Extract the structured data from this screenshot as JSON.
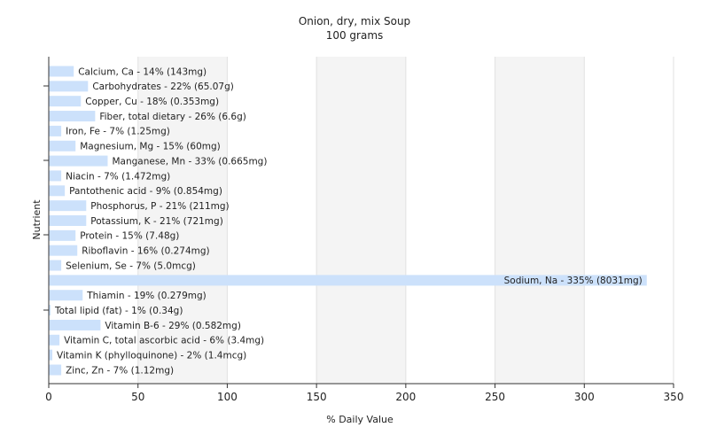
{
  "chart_data": {
    "type": "bar",
    "orientation": "horizontal",
    "title": "Onion, dry, mix Soup",
    "subtitle": "100 grams",
    "xlabel": "% Daily Value",
    "ylabel": "Nutrient",
    "xlim": [
      0,
      350
    ],
    "xticks": [
      0,
      50,
      100,
      150,
      200,
      250,
      300,
      350
    ],
    "grid": true,
    "bar_color": "#cce1fb",
    "categories": [
      "Calcium, Ca - 14% (143mg)",
      "Carbohydrates - 22% (65.07g)",
      "Copper, Cu - 18% (0.353mg)",
      "Fiber, total dietary - 26% (6.6g)",
      "Iron, Fe - 7% (1.25mg)",
      "Magnesium, Mg - 15% (60mg)",
      "Manganese, Mn - 33% (0.665mg)",
      "Niacin - 7% (1.472mg)",
      "Pantothenic acid - 9% (0.854mg)",
      "Phosphorus, P - 21% (211mg)",
      "Potassium, K - 21% (721mg)",
      "Protein - 15% (7.48g)",
      "Riboflavin - 16% (0.274mg)",
      "Selenium, Se - 7% (5.0mcg)",
      "Sodium, Na - 335% (8031mg)",
      "Thiamin - 19% (0.279mg)",
      "Total lipid (fat) - 1% (0.34g)",
      "Vitamin B-6 - 29% (0.582mg)",
      "Vitamin C, total ascorbic acid - 6% (3.4mg)",
      "Vitamin K (phylloquinone) - 2% (1.4mcg)",
      "Zinc, Zn - 7% (1.12mg)"
    ],
    "values": [
      14,
      22,
      18,
      26,
      7,
      15,
      33,
      7,
      9,
      21,
      21,
      15,
      16,
      7,
      335,
      19,
      1,
      29,
      6,
      2,
      7
    ]
  }
}
